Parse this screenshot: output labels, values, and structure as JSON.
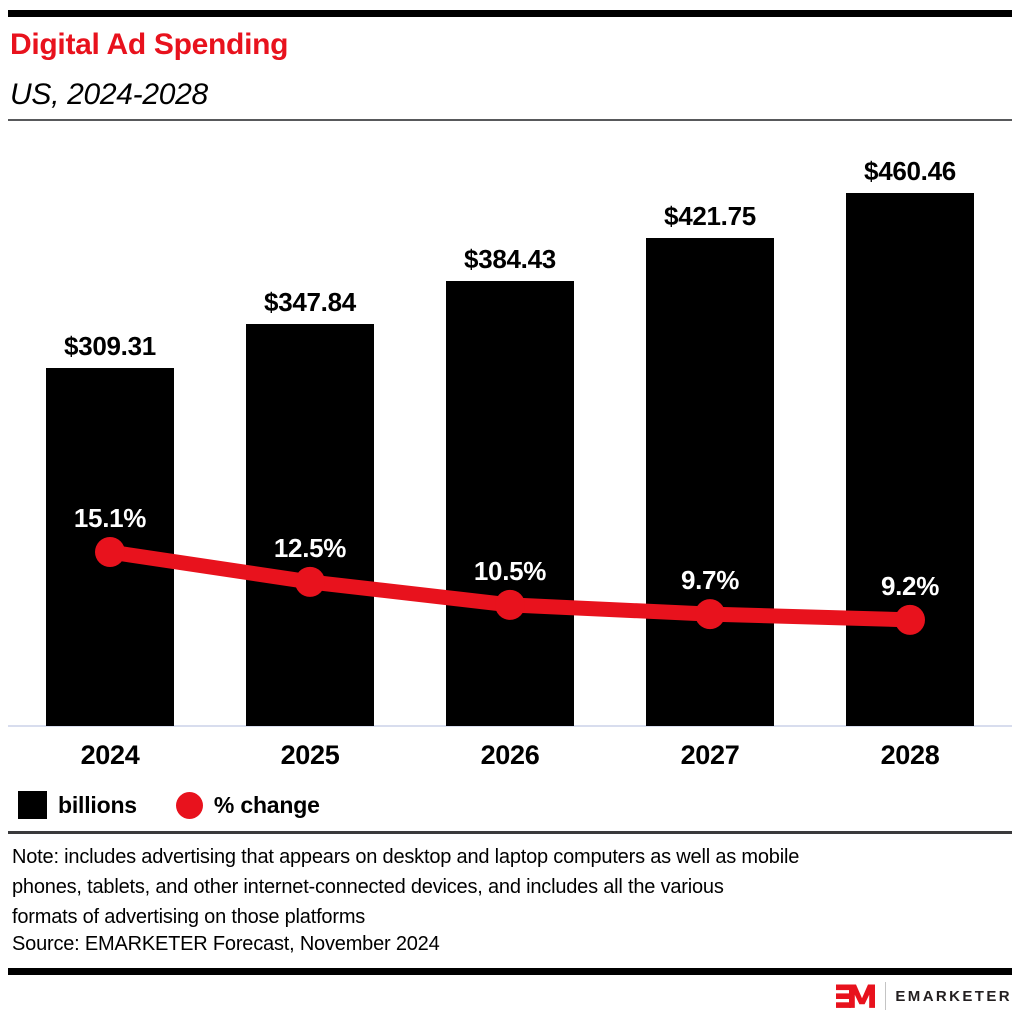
{
  "header": {
    "title": "Digital Ad Spending",
    "subtitle": "US, 2024-2028",
    "title_color": "#e8121d"
  },
  "chart_data": {
    "type": "bar+line",
    "categories": [
      "2024",
      "2025",
      "2026",
      "2027",
      "2028"
    ],
    "series": [
      {
        "name": "billions",
        "type": "bar",
        "color": "#000000",
        "values": [
          309.31,
          347.84,
          384.43,
          421.75,
          460.46
        ],
        "labels": [
          "$309.31",
          "$347.84",
          "$384.43",
          "$421.75",
          "$460.46"
        ]
      },
      {
        "name": "% change",
        "type": "line",
        "color": "#e8121d",
        "values": [
          15.1,
          12.5,
          10.5,
          9.7,
          9.2
        ],
        "labels": [
          "15.1%",
          "12.5%",
          "10.5%",
          "9.7%",
          "9.2%"
        ]
      }
    ],
    "title": "Digital Ad Spending",
    "subtitle": "US, 2024-2028",
    "xlabel": "",
    "ylabel": "",
    "grid": false,
    "legend_position": "bottom",
    "bar_value_unit": "US$ billions",
    "line_value_unit": "percent"
  },
  "legend": {
    "bar_label": "billions",
    "line_label": "% change"
  },
  "footnote": {
    "lines": [
      "Note: includes advertising that appears on desktop and laptop computers as well as mobile",
      "phones, tablets, and other internet-connected devices, and includes all the various",
      "formats of advertising on those platforms"
    ],
    "source": "Source: EMARKETER Forecast, November 2024"
  },
  "footer": {
    "brand": "EMARKETER"
  }
}
